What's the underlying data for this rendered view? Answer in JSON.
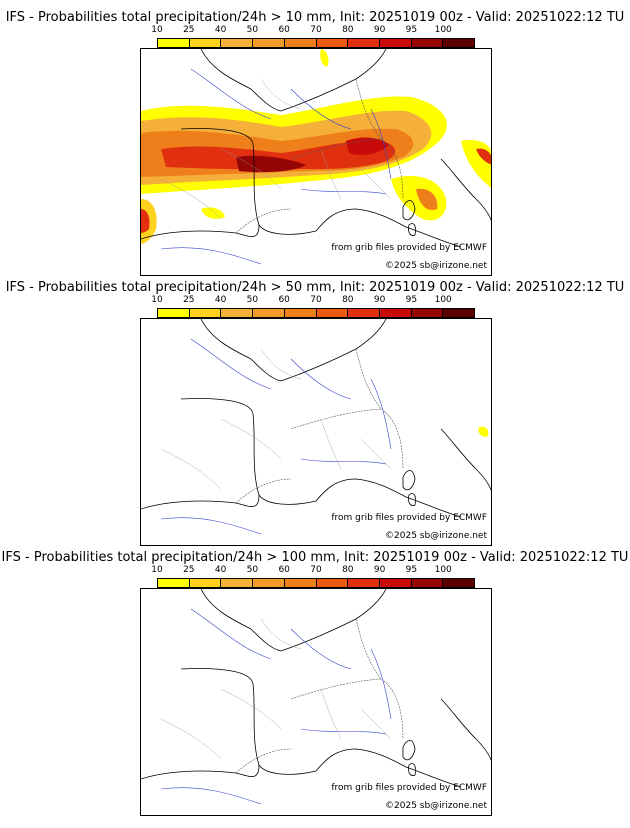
{
  "colorbar": {
    "labels": [
      "10",
      "25",
      "40",
      "50",
      "60",
      "70",
      "80",
      "90",
      "95",
      "100"
    ],
    "colors": [
      "#ffff00",
      "#ffd21e",
      "#f5b03a",
      "#f29a2a",
      "#ef7f1a",
      "#eb5a10",
      "#e03010",
      "#c80a0a",
      "#960505",
      "#5a0000"
    ]
  },
  "panels": [
    {
      "title": "IFS - Probabilities total precipitation/24h > 10 mm, Init: 20251019 00z - Valid: 20251022:12 TU",
      "credit_source": "from grib files provided by ECMWF",
      "credit_copyright": "©2025 sb@irizone.net"
    },
    {
      "title": "IFS - Probabilities total precipitation/24h > 50 mm, Init: 20251019 00z - Valid: 20251022:12 TU",
      "credit_source": "from grib files provided by ECMWF",
      "credit_copyright": "©2025 sb@irizone.net"
    },
    {
      "title": "IFS - Probabilities total precipitation/24h > 100 mm, Init: 20251019 00z - Valid: 20251022:12 TU",
      "credit_source": "from grib files provided by ECMWF",
      "credit_copyright": "©2025 sb@irizone.net"
    }
  ]
}
